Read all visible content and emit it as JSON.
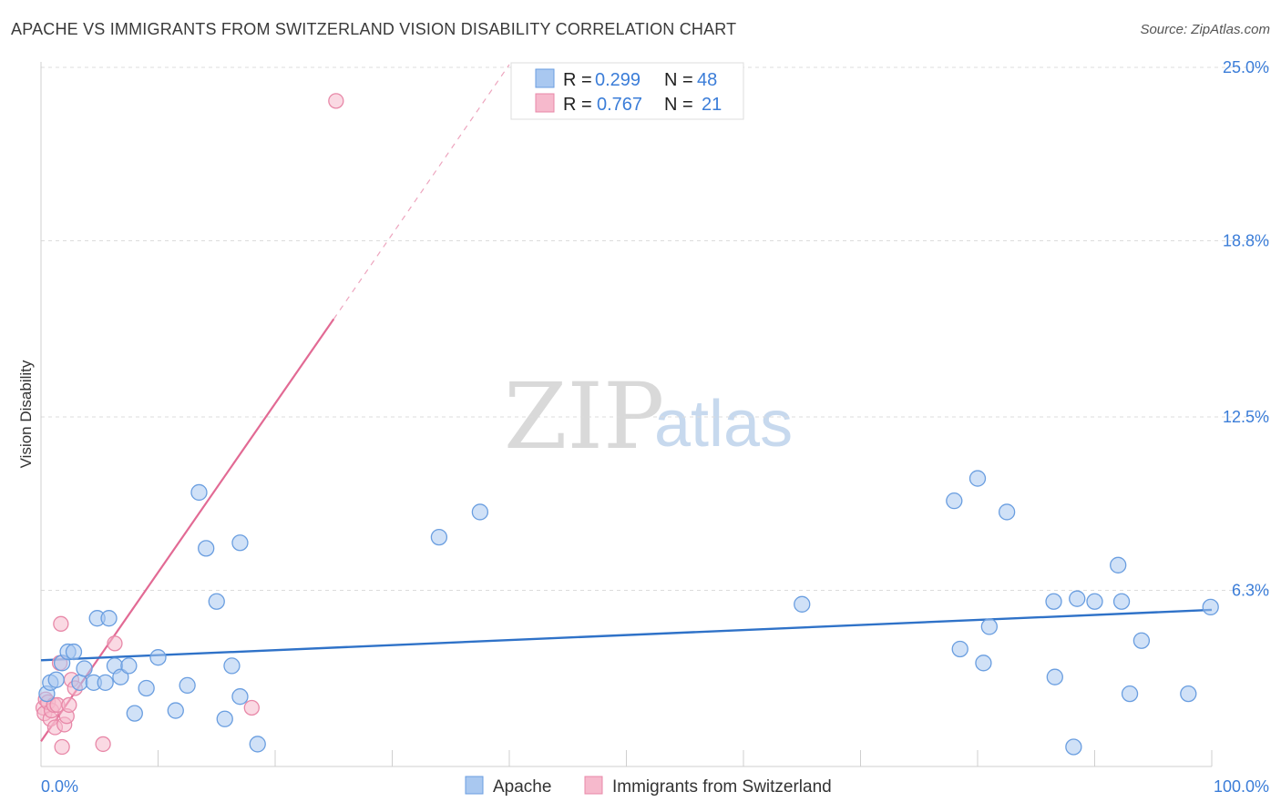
{
  "title": "APACHE VS IMMIGRANTS FROM SWITZERLAND VISION DISABILITY CORRELATION CHART",
  "source": "Source: ZipAtlas.com",
  "watermark": {
    "zip": "ZIP",
    "atlas": "atlas"
  },
  "colors": {
    "apache_fill": "#a9c8f0",
    "apache_stroke": "#6a9ee0",
    "apache_line": "#2f72c8",
    "swiss_fill": "#f6b9cc",
    "swiss_stroke": "#e888a8",
    "swiss_line": "#e26a94",
    "grid": "#dcdcdc",
    "axis_text": "#3b7dd8"
  },
  "legend": {
    "r_label": "R =",
    "n_label": "N =",
    "apache": {
      "r": "0.299",
      "n": "48"
    },
    "swiss": {
      "r": "0.767",
      "n": "21"
    }
  },
  "bottom_legend": {
    "apache": "Apache",
    "swiss": "Immigrants from Switzerland"
  },
  "chart_data": {
    "type": "scatter",
    "title": "APACHE VS IMMIGRANTS FROM SWITZERLAND VISION DISABILITY CORRELATION CHART",
    "xlabel": "",
    "ylabel": "Vision Disability",
    "xlim": [
      0,
      100
    ],
    "ylim": [
      0,
      25
    ],
    "x_tick_labels": [
      "0.0%",
      "100.0%"
    ],
    "y_ticks": [
      6.3,
      12.5,
      18.8,
      25.0
    ],
    "y_tick_labels": [
      "6.3%",
      "12.5%",
      "18.8%",
      "25.0%"
    ],
    "series": [
      {
        "name": "Apache",
        "trend": {
          "x": [
            0,
            100
          ],
          "y": [
            3.8,
            5.6
          ]
        },
        "points": [
          {
            "x": 0.5,
            "y": 2.6
          },
          {
            "x": 0.8,
            "y": 3.0
          },
          {
            "x": 1.3,
            "y": 3.1
          },
          {
            "x": 1.8,
            "y": 3.7
          },
          {
            "x": 2.3,
            "y": 4.1
          },
          {
            "x": 2.8,
            "y": 4.1
          },
          {
            "x": 3.3,
            "y": 3.0
          },
          {
            "x": 3.7,
            "y": 3.5
          },
          {
            "x": 4.5,
            "y": 3.0
          },
          {
            "x": 4.8,
            "y": 5.3
          },
          {
            "x": 5.5,
            "y": 3.0
          },
          {
            "x": 5.8,
            "y": 5.3
          },
          {
            "x": 6.3,
            "y": 3.6
          },
          {
            "x": 6.8,
            "y": 3.2
          },
          {
            "x": 7.5,
            "y": 3.6
          },
          {
            "x": 8.0,
            "y": 1.9
          },
          {
            "x": 9.0,
            "y": 2.8
          },
          {
            "x": 10.0,
            "y": 3.9
          },
          {
            "x": 11.5,
            "y": 2.0
          },
          {
            "x": 12.5,
            "y": 2.9
          },
          {
            "x": 13.5,
            "y": 9.8
          },
          {
            "x": 14.1,
            "y": 7.8
          },
          {
            "x": 15.0,
            "y": 5.9
          },
          {
            "x": 15.7,
            "y": 1.7
          },
          {
            "x": 16.3,
            "y": 3.6
          },
          {
            "x": 17.0,
            "y": 2.5
          },
          {
            "x": 17.0,
            "y": 8.0
          },
          {
            "x": 18.5,
            "y": 0.8
          },
          {
            "x": 34.0,
            "y": 8.2
          },
          {
            "x": 37.5,
            "y": 9.1
          },
          {
            "x": 65.0,
            "y": 5.8
          },
          {
            "x": 78.0,
            "y": 9.5
          },
          {
            "x": 78.5,
            "y": 4.2
          },
          {
            "x": 80.0,
            "y": 10.3
          },
          {
            "x": 80.5,
            "y": 3.7
          },
          {
            "x": 81.0,
            "y": 5.0
          },
          {
            "x": 82.5,
            "y": 9.1
          },
          {
            "x": 86.5,
            "y": 5.9
          },
          {
            "x": 86.6,
            "y": 3.2
          },
          {
            "x": 88.2,
            "y": 0.7
          },
          {
            "x": 88.5,
            "y": 6.0
          },
          {
            "x": 90.0,
            "y": 5.9
          },
          {
            "x": 92.0,
            "y": 7.2
          },
          {
            "x": 92.3,
            "y": 5.9
          },
          {
            "x": 93.0,
            "y": 2.6
          },
          {
            "x": 94.0,
            "y": 4.5
          },
          {
            "x": 98.0,
            "y": 2.6
          },
          {
            "x": 99.9,
            "y": 5.7
          }
        ]
      },
      {
        "name": "Immigrants from Switzerland",
        "trend": {
          "x": [
            0,
            25
          ],
          "y": [
            0.9,
            16.0
          ]
        },
        "trend_extended": {
          "x": [
            25,
            40
          ],
          "y": [
            16.0,
            25.1
          ]
        },
        "points": [
          {
            "x": 0.2,
            "y": 2.1
          },
          {
            "x": 0.3,
            "y": 1.9
          },
          {
            "x": 0.4,
            "y": 2.4
          },
          {
            "x": 0.6,
            "y": 2.3
          },
          {
            "x": 0.8,
            "y": 1.7
          },
          {
            "x": 0.9,
            "y": 2.0
          },
          {
            "x": 1.1,
            "y": 2.2
          },
          {
            "x": 1.2,
            "y": 1.4
          },
          {
            "x": 1.4,
            "y": 2.2
          },
          {
            "x": 1.6,
            "y": 3.7
          },
          {
            "x": 1.7,
            "y": 5.1
          },
          {
            "x": 1.8,
            "y": 0.7
          },
          {
            "x": 2.0,
            "y": 1.5
          },
          {
            "x": 2.2,
            "y": 1.8
          },
          {
            "x": 2.4,
            "y": 2.2
          },
          {
            "x": 2.6,
            "y": 3.1
          },
          {
            "x": 2.9,
            "y": 2.8
          },
          {
            "x": 5.3,
            "y": 0.8
          },
          {
            "x": 6.3,
            "y": 4.4
          },
          {
            "x": 18.0,
            "y": 2.1
          },
          {
            "x": 25.2,
            "y": 23.8
          }
        ]
      }
    ]
  }
}
